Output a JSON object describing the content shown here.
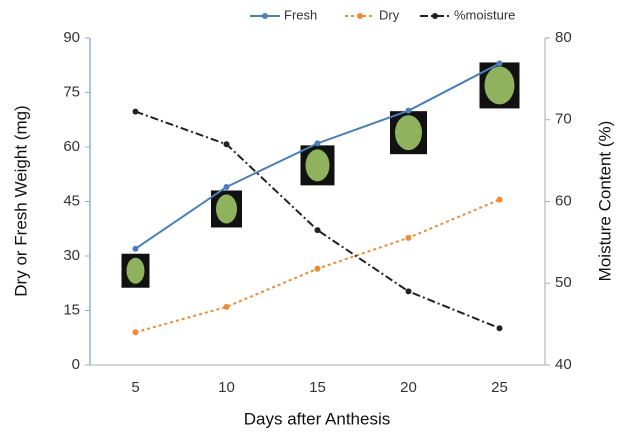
{
  "chart_data": {
    "type": "line",
    "x_label": "Days after Anthesis",
    "y_label": "Dry or Fresh Weight (mg)",
    "y2_label": "Moisture Content (%)",
    "categories": [
      "5",
      "10",
      "15",
      "20",
      "25"
    ],
    "ylim": [
      0,
      90
    ],
    "yticks": [
      0,
      15,
      30,
      45,
      60,
      75,
      90
    ],
    "y2lim": [
      40,
      80
    ],
    "y2ticks": [
      40,
      50,
      60,
      70,
      80
    ],
    "legend": "top",
    "series": [
      {
        "name": "Fresh",
        "color": "#4a7ebb",
        "dash": "solid",
        "values": [
          32,
          49,
          61,
          70,
          83
        ]
      },
      {
        "name": "Dry",
        "color": "#f08a34",
        "dash": "dotted",
        "values": [
          9,
          16,
          26.5,
          35,
          45.5
        ]
      },
      {
        "name": "%moisture",
        "color": "#222222",
        "dash": "dashdot",
        "axis": "y2",
        "values": [
          71,
          67,
          56.5,
          49,
          44.5
        ]
      }
    ]
  }
}
